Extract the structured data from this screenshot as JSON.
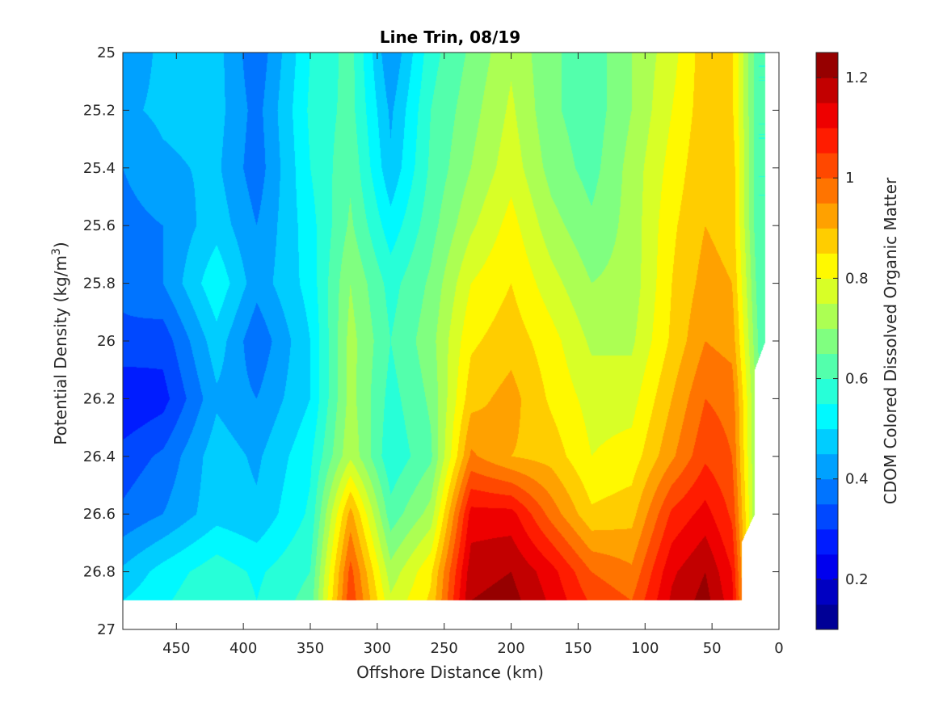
{
  "chart_data": {
    "type": "heatmap",
    "subtype": "filled-contour",
    "title": "Line Trin, 08/19",
    "xlabel": "Offshore Distance (km)",
    "ylabel_main": "Potential Density (kg/m",
    "ylabel_sup": "3",
    "ylabel_end": ")",
    "colorbar_label": "CDOM Colored Dissolved Organic Matter",
    "colormap": "jet",
    "xlim": [
      490,
      0
    ],
    "x_reversed": true,
    "ylim": [
      25,
      27
    ],
    "y_reversed": true,
    "clim": [
      0.1,
      1.25
    ],
    "contour_step": 0.05,
    "x_ticks": [
      450,
      400,
      350,
      300,
      250,
      200,
      150,
      100,
      50,
      0
    ],
    "x_tick_labels": [
      "450",
      "400",
      "350",
      "300",
      "250",
      "200",
      "150",
      "100",
      "50",
      "0"
    ],
    "y_ticks": [
      25,
      25.2,
      25.4,
      25.6,
      25.8,
      26,
      26.2,
      26.4,
      26.6,
      26.8,
      27
    ],
    "y_tick_labels": [
      "25",
      "25.2",
      "25.4",
      "25.6",
      "25.8",
      "26",
      "26.2",
      "26.4",
      "26.6",
      "26.8",
      "27"
    ],
    "colorbar_ticks": [
      0.2,
      0.4,
      0.6,
      0.8,
      1.0,
      1.2
    ],
    "colorbar_tick_labels": [
      "0.2",
      "0.4",
      "0.6",
      "0.8",
      "1",
      "1.2"
    ],
    "grid": false,
    "data_region": {
      "max_density": 26.9,
      "right_edge_km": [
        [
          25,
          10
        ],
        [
          26,
          10
        ],
        [
          26.1,
          18
        ],
        [
          26.6,
          18
        ],
        [
          26.7,
          28
        ],
        [
          26.9,
          28
        ]
      ]
    },
    "cdom_grid": {
      "x": [
        490,
        460,
        420,
        390,
        350,
        320,
        290,
        260,
        230,
        200,
        170,
        140,
        110,
        80,
        55,
        35,
        15
      ],
      "y": [
        25,
        25.2,
        25.4,
        25.6,
        25.8,
        26,
        26.2,
        26.4,
        26.6,
        26.8,
        26.9
      ],
      "values": [
        [
          0.42,
          0.46,
          0.47,
          0.36,
          0.55,
          0.62,
          0.4,
          0.58,
          0.66,
          0.74,
          0.66,
          0.62,
          0.7,
          0.78,
          0.88,
          0.86,
          0.6
        ],
        [
          0.44,
          0.46,
          0.47,
          0.38,
          0.56,
          0.62,
          0.44,
          0.6,
          0.68,
          0.76,
          0.66,
          0.62,
          0.7,
          0.8,
          0.88,
          0.86,
          0.6
        ],
        [
          0.4,
          0.44,
          0.46,
          0.37,
          0.55,
          0.64,
          0.46,
          0.61,
          0.7,
          0.78,
          0.68,
          0.63,
          0.72,
          0.82,
          0.89,
          0.88,
          0.6
        ],
        [
          0.38,
          0.4,
          0.48,
          0.4,
          0.53,
          0.66,
          0.52,
          0.63,
          0.74,
          0.82,
          0.72,
          0.66,
          0.72,
          0.84,
          0.9,
          0.88,
          0.6
        ],
        [
          0.36,
          0.4,
          0.54,
          0.42,
          0.52,
          0.7,
          0.58,
          0.66,
          0.8,
          0.85,
          0.77,
          0.7,
          0.72,
          0.85,
          0.92,
          0.9,
          0.62
        ],
        [
          0.34,
          0.32,
          0.48,
          0.36,
          0.5,
          0.72,
          0.6,
          0.68,
          0.84,
          0.88,
          0.82,
          0.74,
          0.74,
          0.86,
          0.95,
          0.93,
          0.64
        ],
        [
          0.25,
          0.28,
          0.44,
          0.4,
          0.5,
          0.72,
          0.58,
          0.66,
          0.88,
          0.92,
          0.84,
          0.78,
          0.78,
          0.9,
          1.0,
          0.98,
          0.66
        ],
        [
          0.32,
          0.36,
          0.48,
          0.44,
          0.54,
          0.74,
          0.56,
          0.64,
          0.96,
          0.9,
          0.88,
          0.8,
          0.82,
          0.94,
          1.04,
          1.0,
          0.66
        ],
        [
          0.36,
          0.4,
          0.48,
          0.46,
          0.56,
          0.92,
          0.62,
          0.72,
          1.12,
          1.12,
          0.98,
          0.86,
          0.88,
          1.06,
          1.12,
          1.04,
          0.66
        ],
        [
          0.46,
          0.52,
          0.58,
          0.54,
          0.6,
          1.02,
          0.72,
          0.84,
          1.18,
          1.2,
          1.12,
          1.0,
          0.96,
          1.14,
          1.2,
          1.1,
          0.66
        ],
        [
          0.5,
          0.54,
          0.6,
          0.55,
          0.62,
          1.04,
          0.76,
          0.86,
          1.2,
          1.22,
          1.14,
          1.04,
          1.0,
          1.16,
          1.22,
          1.12,
          0.66
        ]
      ]
    }
  }
}
